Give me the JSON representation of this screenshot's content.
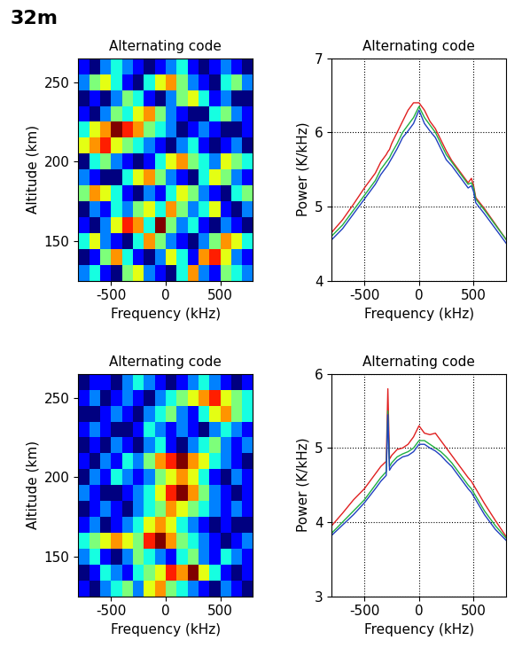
{
  "label": "32m",
  "chart_data": [
    {
      "type": "heatmap",
      "title": "Alternating code",
      "x_label": "Frequency (kHz)",
      "y_label": "Altitude (km)",
      "xlim": [
        -800,
        800
      ],
      "ylim": [
        125,
        265
      ],
      "xticks": [
        -500,
        0,
        500
      ],
      "yticks": [
        150,
        200,
        250
      ],
      "x_edges": [
        -800,
        -700,
        -600,
        -500,
        -400,
        -300,
        -200,
        -100,
        0,
        100,
        200,
        300,
        400,
        500,
        600,
        700,
        800
      ],
      "y_edges": [
        125,
        135,
        145,
        155,
        165,
        175,
        185,
        195,
        205,
        215,
        225,
        235,
        245,
        255,
        265
      ],
      "cells": [
        [
          2,
          3,
          1,
          0,
          4,
          5,
          2,
          1,
          0,
          3,
          6,
          2,
          1,
          4,
          3,
          2
        ],
        [
          0,
          1,
          4,
          6,
          3,
          1,
          0,
          2,
          5,
          3,
          1,
          6,
          7,
          5,
          2,
          1
        ],
        [
          3,
          5,
          2,
          1,
          0,
          3,
          6,
          4,
          2,
          1,
          0,
          2,
          4,
          6,
          5,
          3
        ],
        [
          1,
          0,
          2,
          5,
          7,
          6,
          3,
          8,
          4,
          2,
          3,
          1,
          0,
          2,
          1,
          0
        ],
        [
          0,
          2,
          1,
          3,
          2,
          4,
          5,
          3,
          6,
          4,
          2,
          3,
          5,
          1,
          0,
          2
        ],
        [
          4,
          6,
          5,
          3,
          1,
          0,
          2,
          1,
          3,
          5,
          4,
          2,
          1,
          0,
          3,
          4
        ],
        [
          2,
          1,
          0,
          0,
          3,
          5,
          6,
          4,
          2,
          1,
          0,
          3,
          5,
          4,
          2,
          1
        ],
        [
          0,
          3,
          4,
          2,
          1,
          0,
          1,
          3,
          5,
          6,
          4,
          3,
          2,
          5,
          4,
          3
        ],
        [
          5,
          6,
          7,
          5,
          4,
          3,
          2,
          1,
          0,
          2,
          3,
          1,
          0,
          1,
          2,
          0
        ],
        [
          3,
          5,
          6,
          8,
          7,
          6,
          4,
          3,
          2,
          0,
          1,
          2,
          1,
          0,
          0,
          1
        ],
        [
          1,
          0,
          2,
          4,
          3,
          5,
          6,
          4,
          2,
          1,
          0,
          0,
          3,
          4,
          2,
          1
        ],
        [
          0,
          1,
          0,
          2,
          4,
          3,
          1,
          0,
          2,
          4,
          5,
          3,
          1,
          2,
          0,
          0
        ],
        [
          2,
          4,
          5,
          3,
          1,
          0,
          3,
          5,
          6,
          4,
          2,
          1,
          0,
          3,
          4,
          2
        ],
        [
          1,
          0,
          2,
          3,
          2,
          1,
          0,
          1,
          2,
          3,
          1,
          0,
          1,
          2,
          1,
          0
        ]
      ]
    },
    {
      "type": "line",
      "title": "Alternating code",
      "x_label": "Frequency (kHz)",
      "y_label": "Power (K/kHz)",
      "xlim": [
        -800,
        800
      ],
      "ylim": [
        4,
        7
      ],
      "xticks": [
        -500,
        0,
        500
      ],
      "yticks": [
        4,
        5,
        6,
        7
      ],
      "grid": true,
      "x": [
        -800,
        -700,
        -600,
        -500,
        -400,
        -350,
        -300,
        -285,
        -270,
        -250,
        -200,
        -150,
        -100,
        -50,
        0,
        50,
        100,
        150,
        200,
        250,
        300,
        350,
        400,
        450,
        480,
        500,
        520,
        600,
        700,
        800
      ],
      "series": [
        {
          "color": "#e02020",
          "values": [
            4.65,
            4.82,
            5.03,
            5.25,
            5.45,
            5.6,
            5.7,
            5.74,
            5.77,
            5.85,
            6.0,
            6.15,
            6.3,
            6.4,
            6.4,
            6.3,
            6.15,
            6.05,
            5.9,
            5.75,
            5.62,
            5.52,
            5.42,
            5.32,
            5.38,
            5.28,
            5.12,
            4.97,
            4.76,
            4.55
          ]
        },
        {
          "color": "#20b040",
          "values": [
            4.6,
            4.75,
            4.95,
            5.15,
            5.35,
            5.5,
            5.6,
            5.63,
            5.66,
            5.72,
            5.85,
            6.0,
            6.1,
            6.2,
            6.35,
            6.2,
            6.1,
            6.0,
            5.85,
            5.7,
            5.6,
            5.5,
            5.4,
            5.3,
            5.32,
            5.25,
            5.1,
            4.95,
            4.75,
            4.55
          ]
        },
        {
          "color": "#2040c0",
          "values": [
            4.55,
            4.7,
            4.9,
            5.1,
            5.3,
            5.43,
            5.53,
            5.56,
            5.6,
            5.65,
            5.78,
            5.93,
            6.02,
            6.12,
            6.3,
            6.12,
            6.02,
            5.93,
            5.78,
            5.63,
            5.55,
            5.45,
            5.35,
            5.25,
            5.28,
            5.2,
            5.05,
            4.9,
            4.7,
            4.5
          ]
        }
      ]
    },
    {
      "type": "heatmap",
      "title": "Alternating code",
      "x_label": "Frequency (kHz)",
      "y_label": "Altitude (km)",
      "xlim": [
        -800,
        800
      ],
      "ylim": [
        125,
        265
      ],
      "xticks": [
        -500,
        0,
        500
      ],
      "yticks": [
        150,
        200,
        250
      ],
      "x_edges": [
        -800,
        -700,
        -600,
        -500,
        -400,
        -300,
        -200,
        -100,
        0,
        100,
        200,
        300,
        400,
        500,
        600,
        700,
        800
      ],
      "y_edges": [
        125,
        135,
        145,
        155,
        165,
        175,
        185,
        195,
        205,
        215,
        225,
        235,
        245,
        255,
        265
      ],
      "cells": [
        [
          1,
          0,
          2,
          3,
          4,
          2,
          5,
          6,
          4,
          3,
          2,
          1,
          0,
          2,
          1,
          0
        ],
        [
          0,
          1,
          3,
          2,
          1,
          3,
          4,
          5,
          7,
          6,
          8,
          5,
          3,
          1,
          0,
          1
        ],
        [
          2,
          3,
          1,
          0,
          2,
          4,
          3,
          2,
          1,
          3,
          4,
          2,
          1,
          3,
          2,
          1
        ],
        [
          3,
          4,
          5,
          6,
          5,
          4,
          7,
          8,
          6,
          4,
          3,
          2,
          1,
          0,
          1,
          2
        ],
        [
          1,
          2,
          0,
          1,
          2,
          3,
          5,
          6,
          5,
          3,
          2,
          1,
          0,
          1,
          0,
          0
        ],
        [
          0,
          1,
          2,
          1,
          0,
          2,
          3,
          4,
          6,
          5,
          4,
          3,
          2,
          1,
          2,
          1
        ],
        [
          2,
          1,
          0,
          0,
          1,
          2,
          3,
          5,
          7,
          8,
          6,
          4,
          2,
          1,
          0,
          1
        ],
        [
          0,
          2,
          1,
          3,
          2,
          1,
          2,
          4,
          5,
          6,
          5,
          3,
          1,
          0,
          2,
          1
        ],
        [
          1,
          0,
          2,
          1,
          3,
          2,
          4,
          6,
          7,
          8,
          6,
          5,
          3,
          2,
          1,
          0
        ],
        [
          0,
          1,
          0,
          2,
          1,
          0,
          2,
          3,
          1,
          0,
          2,
          3,
          4,
          2,
          1,
          2
        ],
        [
          1,
          2,
          1,
          0,
          0,
          1,
          3,
          2,
          1,
          2,
          1,
          0,
          2,
          3,
          2,
          1
        ],
        [
          0,
          0,
          1,
          2,
          1,
          0,
          2,
          3,
          4,
          2,
          1,
          3,
          5,
          6,
          4,
          3
        ],
        [
          1,
          2,
          0,
          1,
          2,
          1,
          0,
          2,
          3,
          4,
          5,
          6,
          7,
          5,
          4,
          3
        ],
        [
          0,
          1,
          1,
          0,
          2,
          3,
          2,
          1,
          0,
          1,
          2,
          3,
          2,
          1,
          0,
          1
        ]
      ]
    },
    {
      "type": "line",
      "title": "Alternating code",
      "x_label": "Frequency (kHz)",
      "y_label": "Power (K/kHz)",
      "xlim": [
        -800,
        800
      ],
      "ylim": [
        3,
        6
      ],
      "xticks": [
        -500,
        0,
        500
      ],
      "yticks": [
        3,
        4,
        5,
        6
      ],
      "grid": true,
      "x": [
        -800,
        -700,
        -600,
        -500,
        -400,
        -350,
        -300,
        -285,
        -270,
        -250,
        -200,
        -150,
        -100,
        -50,
        0,
        50,
        100,
        150,
        200,
        250,
        300,
        350,
        400,
        450,
        480,
        500,
        520,
        600,
        700,
        800
      ],
      "series": [
        {
          "color": "#e02020",
          "values": [
            3.95,
            4.12,
            4.3,
            4.45,
            4.65,
            4.75,
            4.82,
            5.8,
            4.85,
            4.9,
            4.98,
            5.0,
            5.05,
            5.15,
            5.3,
            5.2,
            5.18,
            5.2,
            5.1,
            5.0,
            4.9,
            4.8,
            4.7,
            4.6,
            4.55,
            4.5,
            4.45,
            4.25,
            4.02,
            3.8
          ]
        },
        {
          "color": "#20b040",
          "values": [
            3.85,
            4.0,
            4.15,
            4.3,
            4.5,
            4.6,
            4.68,
            5.5,
            4.75,
            4.8,
            4.88,
            4.92,
            4.95,
            5.0,
            5.1,
            5.1,
            5.05,
            5.0,
            4.95,
            4.88,
            4.8,
            4.7,
            4.6,
            4.5,
            4.45,
            4.4,
            4.35,
            4.15,
            3.95,
            3.78
          ]
        },
        {
          "color": "#2040c0",
          "values": [
            3.82,
            3.96,
            4.1,
            4.26,
            4.45,
            4.55,
            4.63,
            5.45,
            4.7,
            4.75,
            4.83,
            4.88,
            4.9,
            4.95,
            5.05,
            5.05,
            5.0,
            4.96,
            4.9,
            4.82,
            4.75,
            4.65,
            4.55,
            4.45,
            4.4,
            4.35,
            4.3,
            4.1,
            3.9,
            3.75
          ]
        }
      ]
    }
  ]
}
